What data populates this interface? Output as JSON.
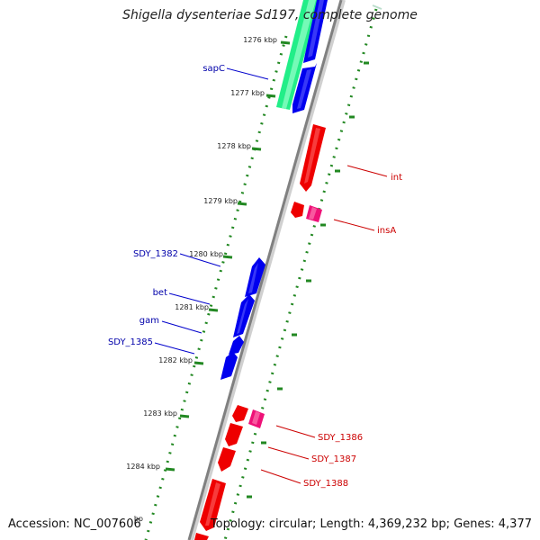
{
  "title": "Shigella dysenteriae Sd197, complete genome",
  "accession": "Accession: NC_007606",
  "topology": "Topology: circular; Length: 4,369,232 bp; Genes: 4,377",
  "colors": {
    "forward_gene": "#0000ee",
    "reverse_gene": "#ee0000",
    "insertion": "#ee1177",
    "region": "#22ee88",
    "backbone": "#808080",
    "scale_dots": "#228822",
    "forward_label": "#0000aa",
    "reverse_label": "#cc0000"
  },
  "ticks": [
    {
      "label": "1276 kbp"
    },
    {
      "label": "1277 kbp"
    },
    {
      "label": "1278 kbp"
    },
    {
      "label": "1279 kbp"
    },
    {
      "label": "1280 kbp"
    },
    {
      "label": "1281 kbp"
    },
    {
      "label": "1282 kbp"
    },
    {
      "label": "1283 kbp"
    },
    {
      "label": "1284 kbp"
    },
    {
      "label": "bp"
    }
  ],
  "gene_labels": [
    {
      "name": "sapC",
      "strand": "forward"
    },
    {
      "name": "int",
      "strand": "reverse"
    },
    {
      "name": "insA",
      "strand": "reverse"
    },
    {
      "name": "SDY_1382",
      "strand": "forward"
    },
    {
      "name": "bet",
      "strand": "forward"
    },
    {
      "name": "gam",
      "strand": "forward"
    },
    {
      "name": "SDY_1385",
      "strand": "forward"
    },
    {
      "name": "SDY_1386",
      "strand": "reverse"
    },
    {
      "name": "SDY_1387",
      "strand": "reverse"
    },
    {
      "name": "SDY_1388",
      "strand": "reverse"
    }
  ]
}
